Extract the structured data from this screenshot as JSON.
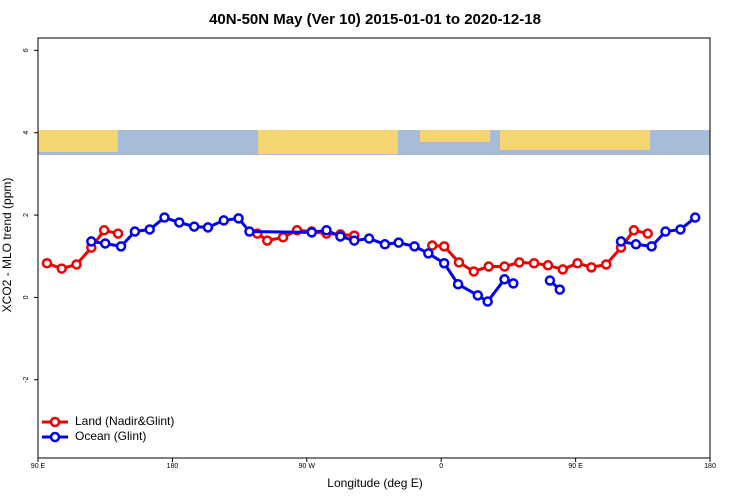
{
  "chart_data": {
    "type": "line",
    "title": "40N-50N May (Ver 10)   2015-01-01 to 2020-12-18",
    "x_label": "Longitude (deg E)",
    "y_label": "XCO2 - MLO trend (ppm)",
    "xlim": [
      90,
      540
    ],
    "ylim": [
      -3.9,
      6.3
    ],
    "xticks": [
      {
        "value": 90,
        "label": "90 E"
      },
      180,
      {
        "value": 270,
        "label": "90 W"
      },
      {
        "value": 360,
        "label": "0"
      },
      {
        "value": 450,
        "label": "90 E"
      },
      {
        "value": 540,
        "label": "180"
      }
    ],
    "yticks": [
      -2,
      0,
      2,
      4,
      6
    ],
    "legend": "bottomleft",
    "series": [
      {
        "name": "Land (Nadir&Glint)",
        "color": "#ee0000",
        "x": [
          96,
          105.9,
          115.8,
          125.7,
          134.3,
          143.6,
          null,
          236.9,
          243.5,
          254.1,
          263.4,
          273.3,
          283.2,
          292.5,
          301.8,
          null,
          354,
          362,
          371.9,
          381.8,
          391.8,
          402.4,
          412.3,
          422.2,
          431.5,
          441.4,
          451.3,
          460.6,
          470.5,
          480.4,
          489,
          498.3
        ],
        "values": [
          0.83,
          0.7,
          0.8,
          1.21,
          1.63,
          1.55,
          null,
          1.55,
          1.38,
          1.46,
          1.63,
          1.6,
          1.55,
          1.53,
          1.5,
          null,
          1.26,
          1.24,
          0.85,
          0.63,
          0.75,
          0.75,
          0.85,
          0.83,
          0.78,
          0.68,
          0.83,
          0.73,
          0.8,
          1.21,
          1.63,
          1.55
        ]
      },
      {
        "name": "Ocean (Glint)",
        "color": "#0000ee",
        "x": [
          125.7,
          135,
          145.6,
          154.9,
          164.8,
          174.7,
          184.6,
          194.6,
          203.8,
          214.4,
          224.3,
          231.6,
          273.3,
          283.2,
          292.5,
          301.8,
          311.7,
          322.3,
          331.5,
          342.1,
          351.4,
          362,
          371.3,
          384.5,
          391.1,
          402.4,
          408.3,
          null,
          432.8,
          439.4,
          null,
          480.4,
          490.4,
          500.9,
          510.2,
          520.2,
          530.1
        ],
        "values": [
          1.36,
          1.31,
          1.24,
          1.6,
          1.65,
          1.94,
          1.82,
          1.72,
          1.7,
          1.87,
          1.92,
          1.6,
          1.58,
          1.63,
          1.48,
          1.38,
          1.43,
          1.29,
          1.33,
          1.24,
          1.07,
          0.83,
          0.32,
          0.05,
          -0.1,
          0.44,
          0.34,
          null,
          0.41,
          0.19,
          null,
          1.36,
          1.29,
          1.24,
          1.6,
          1.65,
          1.94
        ]
      }
    ]
  }
}
